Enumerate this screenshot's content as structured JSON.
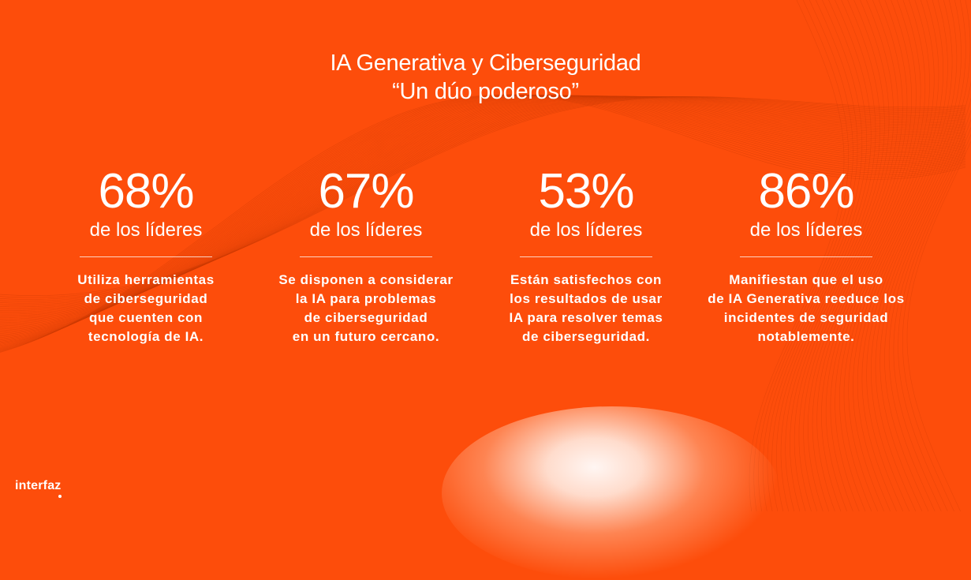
{
  "title": {
    "line1": "IA Generativa y Ciberseguridad",
    "line2": "“Un dúo poderoso”"
  },
  "stats": [
    {
      "value": "68%",
      "subtitle": "de los líderes",
      "description": [
        "Utiliza herramientas",
        "de ciberseguridad",
        "que cuenten con",
        "tecnología de IA."
      ]
    },
    {
      "value": "67%",
      "subtitle": "de los líderes",
      "description": [
        "Se disponen a considerar",
        "la IA para problemas",
        "de ciberseguridad",
        "en un futuro cercano."
      ]
    },
    {
      "value": "53%",
      "subtitle": "de los líderes",
      "description": [
        "Están satisfechos con",
        "los resultados de usar",
        "IA para resolver temas",
        "de ciberseguridad."
      ]
    },
    {
      "value": "86%",
      "subtitle": "de los líderes",
      "description": [
        "Manifiestan que el uso",
        "de IA Generativa reeduce los",
        "incidentes de seguridad",
        "notablemente."
      ]
    }
  ],
  "brand": {
    "logo_text": "interfaz"
  },
  "colors": {
    "background": "#fd4d0b",
    "text": "#ffffff"
  }
}
